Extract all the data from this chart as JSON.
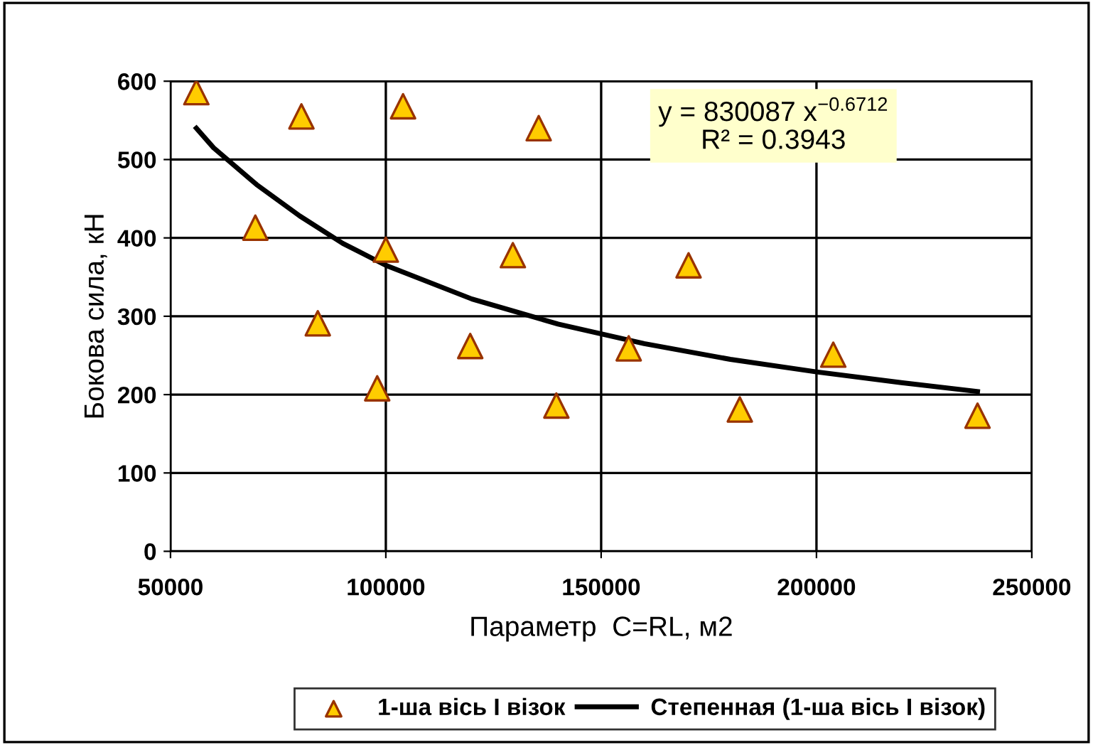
{
  "chart_data": {
    "type": "scatter",
    "xlabel": "Параметр  C=RL, м2",
    "ylabel": "Бокова сила, кН",
    "series": [
      {
        "name": "1-ша вісь І візок",
        "color": "#ffcc00",
        "marker": "triangle",
        "x": [
          56000,
          69700,
          80400,
          84200,
          98000,
          100000,
          104000,
          119600,
          129500,
          135500,
          139600,
          156400,
          170300,
          182200,
          203900,
          237400
        ],
        "values": [
          586,
          413,
          555,
          291,
          208,
          385,
          568,
          262,
          378,
          540,
          186,
          259,
          365,
          181,
          251,
          173
        ]
      },
      {
        "name": "Степенная (1-ша вісь І візок)",
        "type": "line",
        "color": "#000000",
        "marker": "none",
        "line_style": "solid",
        "x": [
          56000,
          60000,
          70000,
          80000,
          90000,
          100000,
          120000,
          140000,
          160000,
          180000,
          200000,
          220000,
          237400
        ],
        "values": [
          540,
          515,
          468,
          428,
          393,
          365,
          322,
          290,
          265,
          245,
          229,
          215,
          204
        ]
      }
    ],
    "xlim": [
      50000,
      250000
    ],
    "xticks": [
      50000,
      100000,
      150000,
      200000,
      250000
    ],
    "ylim": [
      0,
      600
    ],
    "yticks": [
      0,
      100,
      200,
      300,
      400,
      500,
      600
    ],
    "grid": true,
    "legend": "bottom",
    "annotations": [
      "y = 830087 x$^{−0.6712}$\nR² = 0.3943"
    ]
  }
}
